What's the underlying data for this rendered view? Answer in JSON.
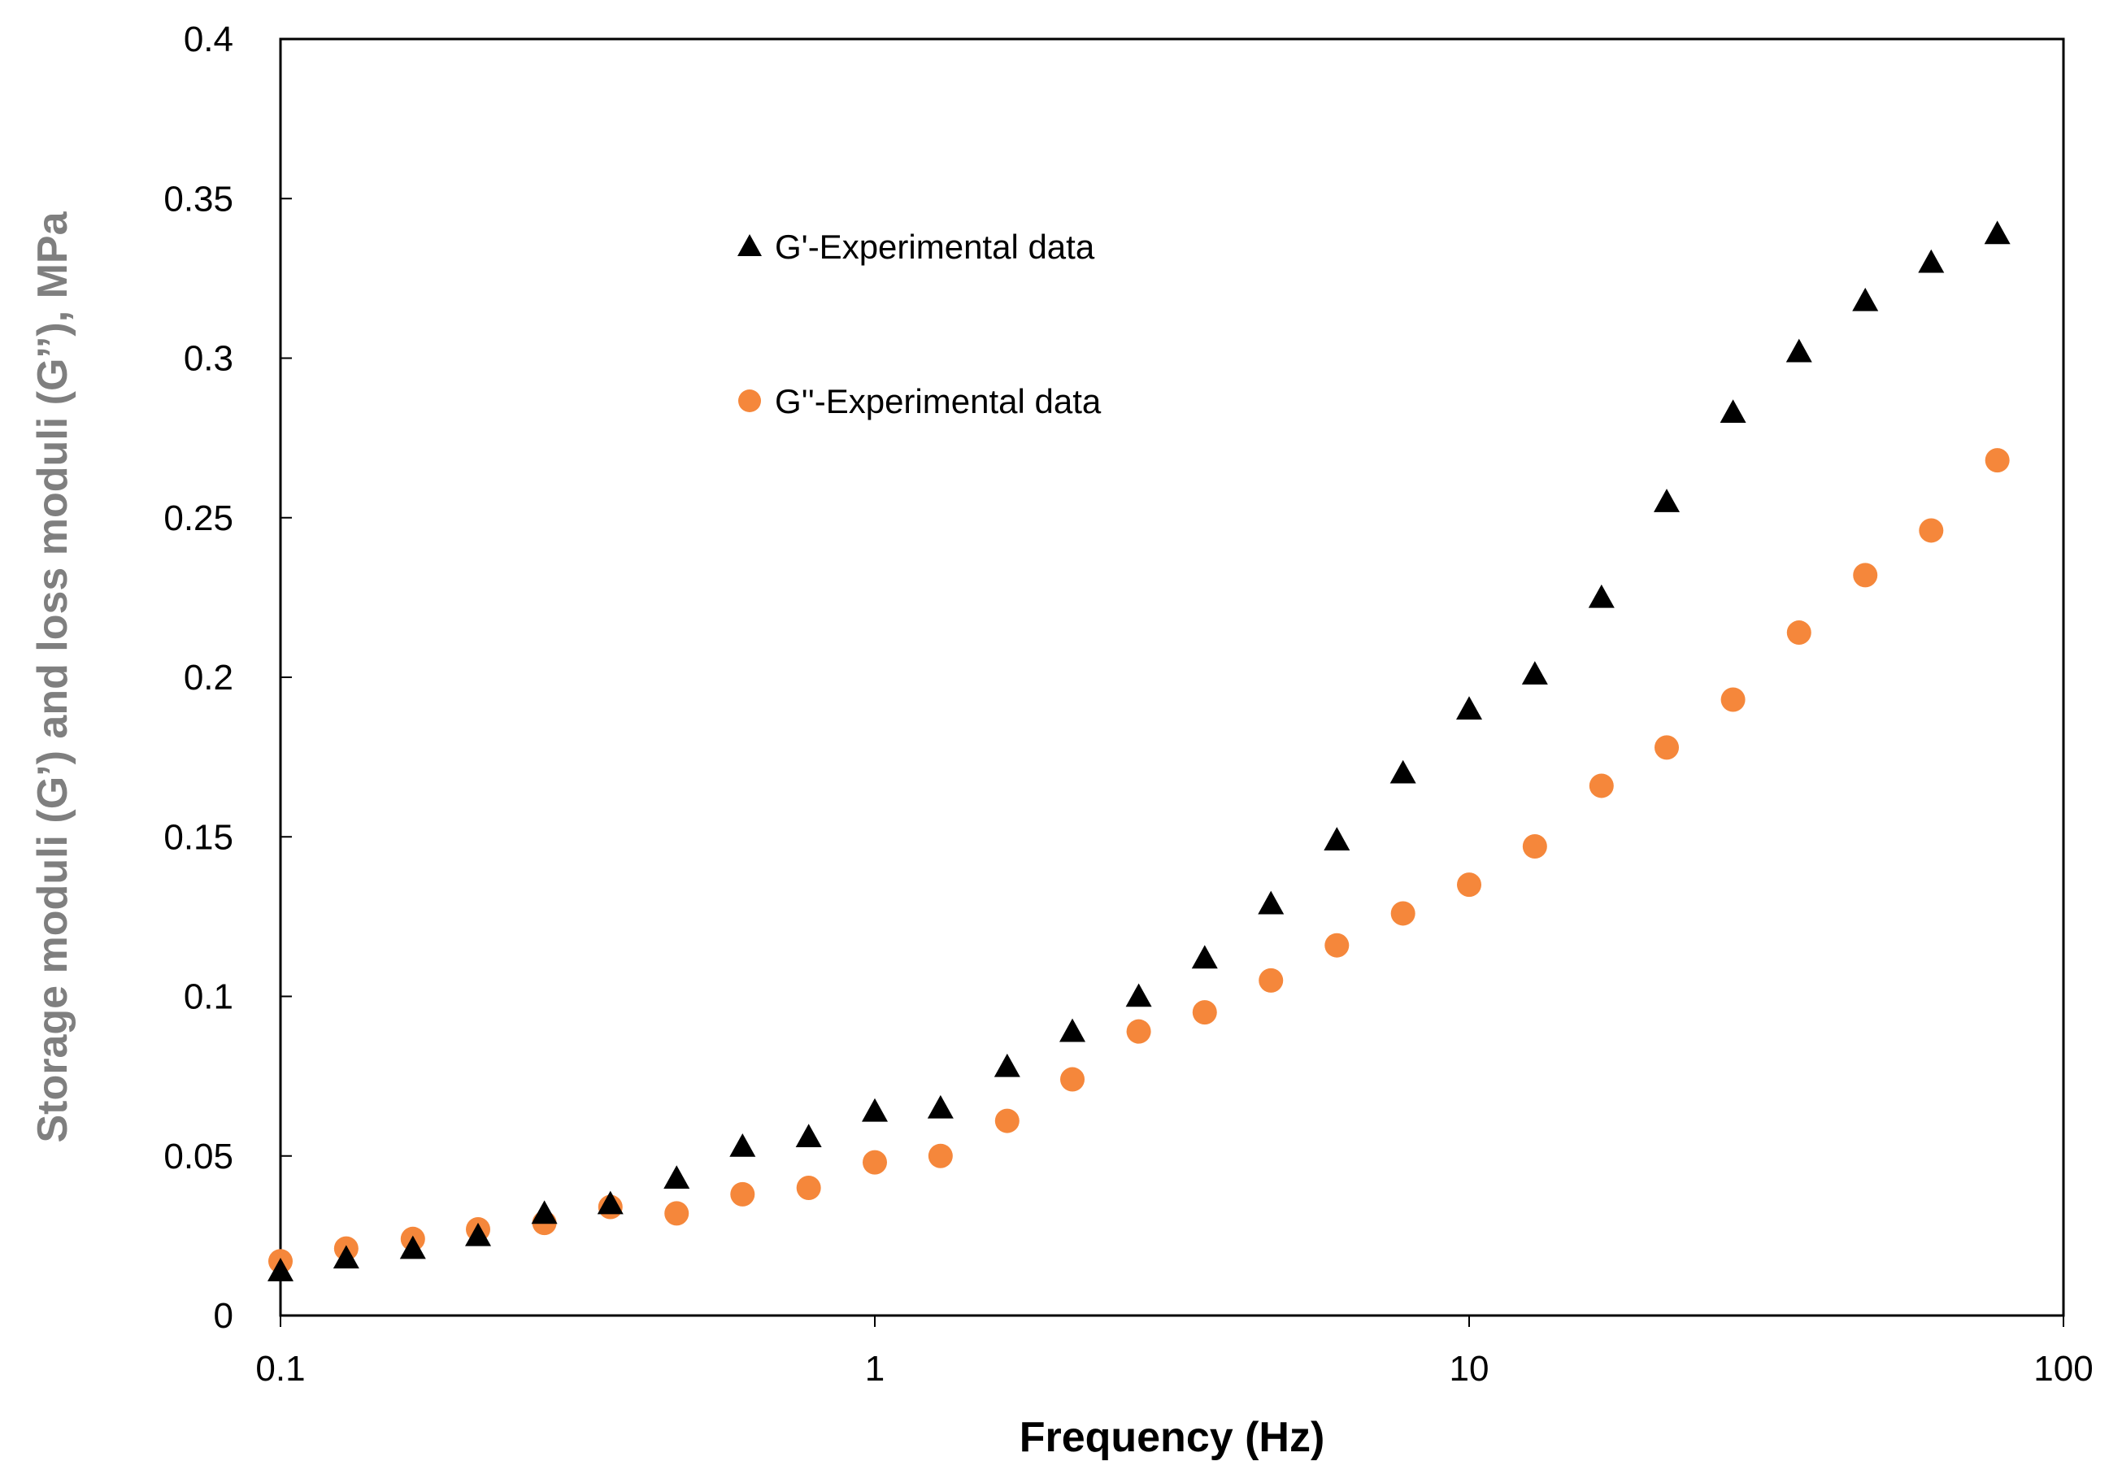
{
  "chart_data": {
    "type": "scatter",
    "title": "",
    "xlabel": "Frequency (Hz)",
    "ylabel": "Storage moduli (G’)  and loss moduli (G’’), MPa",
    "xscale": "log",
    "xlim": [
      0.1,
      100
    ],
    "ylim": [
      0,
      0.4
    ],
    "xticks": [
      0.1,
      1,
      10,
      100
    ],
    "xtick_labels": [
      "0.1",
      "1",
      "10",
      "100"
    ],
    "yticks": [
      0,
      0.05,
      0.1,
      0.15,
      0.2,
      0.25,
      0.3,
      0.35,
      0.4
    ],
    "ytick_labels": [
      "0",
      "0.05",
      "0.1",
      "0.15",
      "0.2",
      "0.25",
      "0.3",
      "0.35",
      "0.4"
    ],
    "grid": false,
    "legend_position": "top-left",
    "x": [
      0.1,
      0.129,
      0.167,
      0.215,
      0.278,
      0.359,
      0.464,
      0.599,
      0.774,
      1.0,
      1.29,
      1.67,
      2.15,
      2.78,
      3.59,
      4.64,
      5.99,
      7.74,
      10.0,
      12.9,
      16.7,
      21.5,
      27.8,
      35.9,
      46.4,
      59.9,
      77.4
    ],
    "series": [
      {
        "name": "G'-Experimental data",
        "marker": "triangle",
        "color": "#000000",
        "values": [
          0.014,
          0.018,
          0.021,
          0.025,
          0.032,
          0.035,
          0.043,
          0.053,
          0.056,
          0.064,
          0.065,
          0.078,
          0.089,
          0.1,
          0.112,
          0.129,
          0.149,
          0.17,
          0.19,
          0.201,
          0.225,
          0.255,
          0.283,
          0.302,
          0.318,
          0.33,
          0.339
        ]
      },
      {
        "name": "G''-Experimental data",
        "marker": "circle",
        "color": "#F5873B",
        "values": [
          0.017,
          0.021,
          0.024,
          0.027,
          0.029,
          0.034,
          0.032,
          0.038,
          0.04,
          0.048,
          0.05,
          0.061,
          0.074,
          0.089,
          0.095,
          0.105,
          0.116,
          0.126,
          0.135,
          0.147,
          0.166,
          0.178,
          0.193,
          0.214,
          0.232,
          0.246,
          0.268
        ]
      }
    ]
  },
  "colors": {
    "axis": "#000000",
    "ylabel": "#7F7F7F",
    "xlabel": "#000000"
  }
}
